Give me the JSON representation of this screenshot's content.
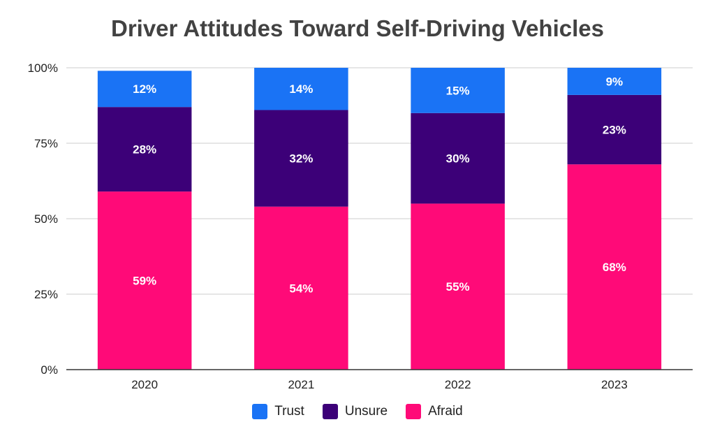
{
  "chart_data": {
    "type": "bar",
    "stacked": true,
    "title": "Driver Attitudes Toward Self-Driving Vehicles",
    "categories": [
      "2020",
      "2021",
      "2022",
      "2023"
    ],
    "series": [
      {
        "name": "Afraid",
        "values": [
          59,
          54,
          55,
          68
        ],
        "labels": [
          "59%",
          "54%",
          "55%",
          "68%"
        ],
        "color": "#ff0a78"
      },
      {
        "name": "Unsure",
        "values": [
          28,
          32,
          30,
          23
        ],
        "labels": [
          "28%",
          "32%",
          "30%",
          "23%"
        ],
        "color": "#3c0078"
      },
      {
        "name": "Trust",
        "values": [
          12,
          14,
          15,
          9
        ],
        "labels": [
          "12%",
          "14%",
          "15%",
          "9%"
        ],
        "color": "#1a73f5"
      }
    ],
    "y_ticks": [
      "0%",
      "25%",
      "50%",
      "75%",
      "100%"
    ],
    "ylim": [
      0,
      100
    ],
    "grid": true,
    "legend_position": "bottom",
    "legend_order": [
      "Trust",
      "Unsure",
      "Afraid"
    ]
  }
}
